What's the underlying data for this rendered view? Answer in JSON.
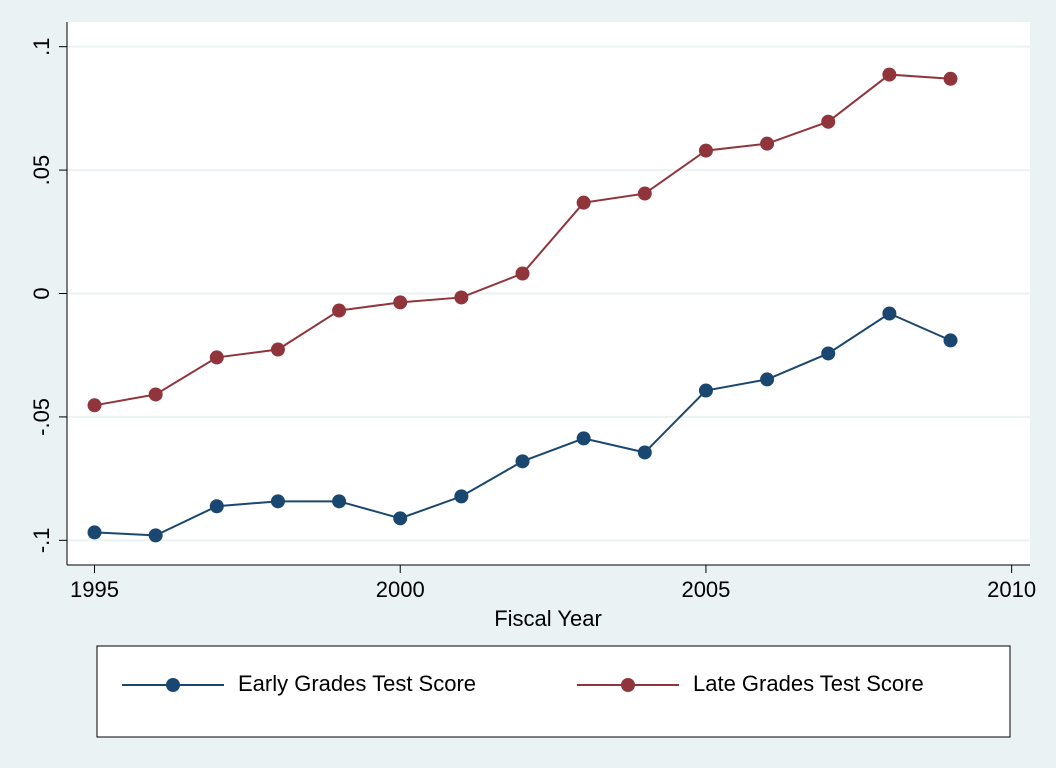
{
  "chart_data": {
    "type": "line",
    "x_label": "Fiscal Year",
    "x": [
      1995,
      1996,
      1997,
      1998,
      1999,
      2000,
      2001,
      2002,
      2003,
      2004,
      2005,
      2006,
      2007,
      2008,
      2009
    ],
    "series": [
      {
        "name": "Early Grades Test Score",
        "color": "#1a476f",
        "values": [
          -0.0968,
          -0.098,
          -0.0862,
          -0.0842,
          -0.0842,
          -0.0911,
          -0.0822,
          -0.068,
          -0.0587,
          -0.0644,
          -0.0393,
          -0.0348,
          -0.0243,
          -0.0081,
          -0.019
        ]
      },
      {
        "name": "Late Grades Test Score",
        "color": "#90353b",
        "values": [
          -0.0453,
          -0.0409,
          -0.0259,
          -0.0227,
          -0.0069,
          -0.0036,
          -0.0016,
          0.0081,
          0.0368,
          0.0405,
          0.0579,
          0.0607,
          0.0696,
          0.0887,
          0.087
        ]
      }
    ],
    "xlim": [
      1994.55,
      2010.3
    ],
    "xticks": [
      1995,
      2000,
      2005,
      2010
    ],
    "ylim": [
      -0.11,
      0.11
    ],
    "yticks": [
      {
        "value": -0.1,
        "label": "-.1"
      },
      {
        "value": -0.05,
        "label": "-.05"
      },
      0,
      {
        "value": 0.05,
        "label": ".05"
      },
      {
        "value": 0.1,
        "label": ".1"
      }
    ],
    "grid": true,
    "legend": "bottom"
  }
}
